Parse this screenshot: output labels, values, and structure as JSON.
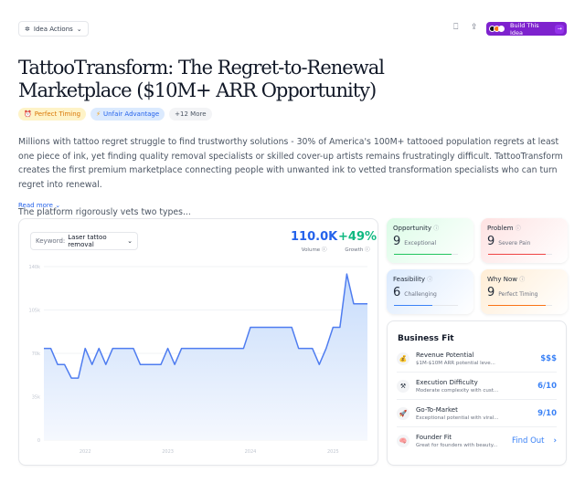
{
  "toolbar": {
    "idea_actions": "Idea Actions",
    "build_label": "Build This Idea"
  },
  "title": "TattooTransform: The Regret-to-Renewal Marketplace ($10M+ ARR Opportunity)",
  "tags": [
    {
      "label": "Perfect Timing",
      "icon": "alarm-clock-icon"
    },
    {
      "label": "Unfair Advantage",
      "icon": "lightning-icon"
    },
    {
      "label": "+12 More"
    }
  ],
  "description": {
    "p1": "Millions with tattoo regret struggle to find trustworthy solutions - 30% of America's 100M+ tattooed population regrets at least one piece of ink, yet finding quality removal specialists or skilled cover-up artists remains frustratingly difficult. TattooTransform creates the first premium marketplace connecting people with unwanted ink to vetted transformation specialists who can turn regret into renewal.",
    "p2": "The platform rigorously vets two types...",
    "read_more": "Read more"
  },
  "trend": {
    "keyword_label": "Keyword:",
    "keyword": "Laser tattoo removal",
    "volume": "110.0K",
    "volume_label": "Volume",
    "growth": "+49%",
    "growth_label": "Growth"
  },
  "chart_data": {
    "type": "area",
    "xlabel": "",
    "ylabel": "",
    "ylim": [
      0,
      140000
    ],
    "y_ticks": [
      "0",
      "35k",
      "70k",
      "105k",
      "140k"
    ],
    "x_ticks": [
      "2022",
      "2023",
      "2024",
      "2025"
    ],
    "x_start": "2021-07",
    "x_end": "2025-06",
    "interval": "month",
    "color": "#4f7df0",
    "grid": true,
    "values": [
      74000,
      74000,
      61000,
      61000,
      50000,
      50000,
      74000,
      61000,
      74000,
      61000,
      74000,
      74000,
      74000,
      74000,
      61000,
      61000,
      61000,
      61000,
      74000,
      61000,
      74000,
      74000,
      74000,
      74000,
      74000,
      74000,
      74000,
      74000,
      74000,
      74000,
      91000,
      91000,
      91000,
      91000,
      91000,
      91000,
      91000,
      74000,
      74000,
      74000,
      61000,
      74000,
      91000,
      91000,
      134000,
      110000,
      110000,
      110000
    ]
  },
  "scores": [
    {
      "label": "Opportunity",
      "value": "9",
      "desc": "Exceptional",
      "fraction": 0.9,
      "color": "#22c55e"
    },
    {
      "label": "Problem",
      "value": "9",
      "desc": "Severe Pain",
      "fraction": 0.9,
      "color": "#ef4444"
    },
    {
      "label": "Feasibility",
      "value": "6",
      "desc": "Challenging",
      "fraction": 0.6,
      "color": "#3b82f6"
    },
    {
      "label": "Why Now",
      "value": "9",
      "desc": "Perfect Timing",
      "fraction": 0.9,
      "color": "#f97316"
    }
  ],
  "business_fit": {
    "title": "Business Fit",
    "rows": [
      {
        "title": "Revenue Potential",
        "sub": "$1M-$10M ARR potential leve...",
        "value": "$$$",
        "icon": "money-bag-icon"
      },
      {
        "title": "Execution Difficulty",
        "sub": "Moderate complexity with cust...",
        "value": "6/10",
        "icon": "tools-icon"
      },
      {
        "title": "Go-To-Market",
        "sub": "Exceptional potential with viral...",
        "value": "9/10",
        "icon": "rocket-icon"
      },
      {
        "title": "Founder Fit",
        "sub": "Great for founders with beauty...",
        "value": "Find Out",
        "icon": "brain-icon"
      }
    ]
  }
}
